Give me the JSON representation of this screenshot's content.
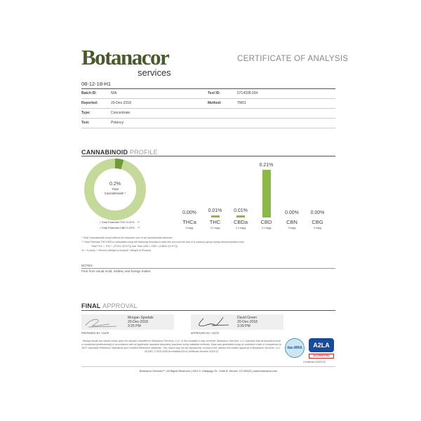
{
  "header": {
    "logo_main": "Botanacor",
    "logo_sub": "services",
    "title": "CERTIFICATE OF ANALYSIS"
  },
  "sample": {
    "id": "08-12-18-H1",
    "fields": [
      {
        "label": "Batch ID:",
        "value": "N/A",
        "label2": "Test ID:",
        "value2": "5714338.034"
      },
      {
        "label": "Reported:",
        "value": "20-Dec-2018",
        "label2": "Method:",
        "value2": "TM01"
      },
      {
        "label": "Type:",
        "value": "Concentrate"
      },
      {
        "label": "Test:",
        "value": "Potency"
      }
    ]
  },
  "profile": {
    "heading_bold": "CANNABINOID",
    "heading_light": "PROFILE",
    "donut": {
      "value": "0.2%",
      "label1": "Total",
      "label2": "Cannabinoids *",
      "thc_fraction": 0.045,
      "colors": {
        "main": "#c5d99a",
        "slice": "#6e9a3a"
      }
    },
    "legend": [
      {
        "label": "Total Potential THC",
        "value": "0.01%",
        "mark": "**"
      },
      {
        "label": "Total Potential CBD",
        "value": "0.22%",
        "mark": "**"
      }
    ],
    "bar_color": "#8cb84a",
    "cannabinoids": [
      {
        "name": "THCa",
        "percent": "0.00%",
        "mg": "0 mg/g",
        "value": 0.0
      },
      {
        "name": "THC",
        "percent": "0.01%",
        "mg": "0.1 mg/g",
        "value": 0.01
      },
      {
        "name": "CBDa",
        "percent": "0.01%",
        "mg": "0.1 mg/g",
        "value": 0.01
      },
      {
        "name": "CBD",
        "percent": "0.21%",
        "mg": "2.1 mg/g",
        "value": 0.21
      },
      {
        "name": "CBN",
        "percent": "0.00%",
        "mg": "0 mg/g",
        "value": 0.0
      },
      {
        "name": "CBG",
        "percent": "0.00%",
        "mg": "0 mg/g",
        "value": 0.0
      }
    ],
    "footnotes": [
      "* Total Cannabinoids result reflects the absolute sum of all cannabinoids detected.",
      "** Total Potential THC/CBD is calculated using the following formulas to take into account the loss of a carboxyl group during decarboxylation step.",
      "Total THC = THC + (THCa *(0.877)) and Total CBD = CBD + (CBDa *(0.877))",
      "% = % (w/w) = Percent (Weight of Analyte / Weight of Product)"
    ]
  },
  "notes": {
    "label": "NOTES:",
    "text": "Free from visual mold, mildew, and foreign matter."
  },
  "approval": {
    "heading_bold": "FINAL",
    "heading_light": "APPROVAL",
    "prepared": {
      "name": "Morgan Spedale",
      "date": "20-Dec-2018",
      "time": "3:25 PM",
      "caption": "PREPARED BY / DATE"
    },
    "approved": {
      "name": "David Green",
      "date": "20-Dec-2018",
      "time": "3:39 PM",
      "caption": "APPROVED BY / DATE"
    }
  },
  "disclaimer": "Testing results are based solely upon the sample submitted to Botanacor Services, LLC, in the condition it was received. Botanacor Services, LLC warrants that all analytical work is conducted professionally in accordance with all applicable standard laboratory practices using validated methods. Data was generated using an unbroken chain of comparison to NIST traceable Reference Standards and Certified Reference Materials. This report may not be reproduced, except in full, without the written approval of Botanacor Services, LLC. ISO/IEC 17025:2005 Accredited A2LA Certificate Number 4329.02",
  "accreditation": {
    "ilac": "ilac-MRA",
    "a2la": "A2LA",
    "accredited": "ACCREDITED",
    "certificate": "Certificate #4329.02"
  },
  "footer": "Botanacor Services™, All Rights Reserved | 1001 S. Galapago St., Suite B, Denver, CO 80223 | www.botanacor.com"
}
